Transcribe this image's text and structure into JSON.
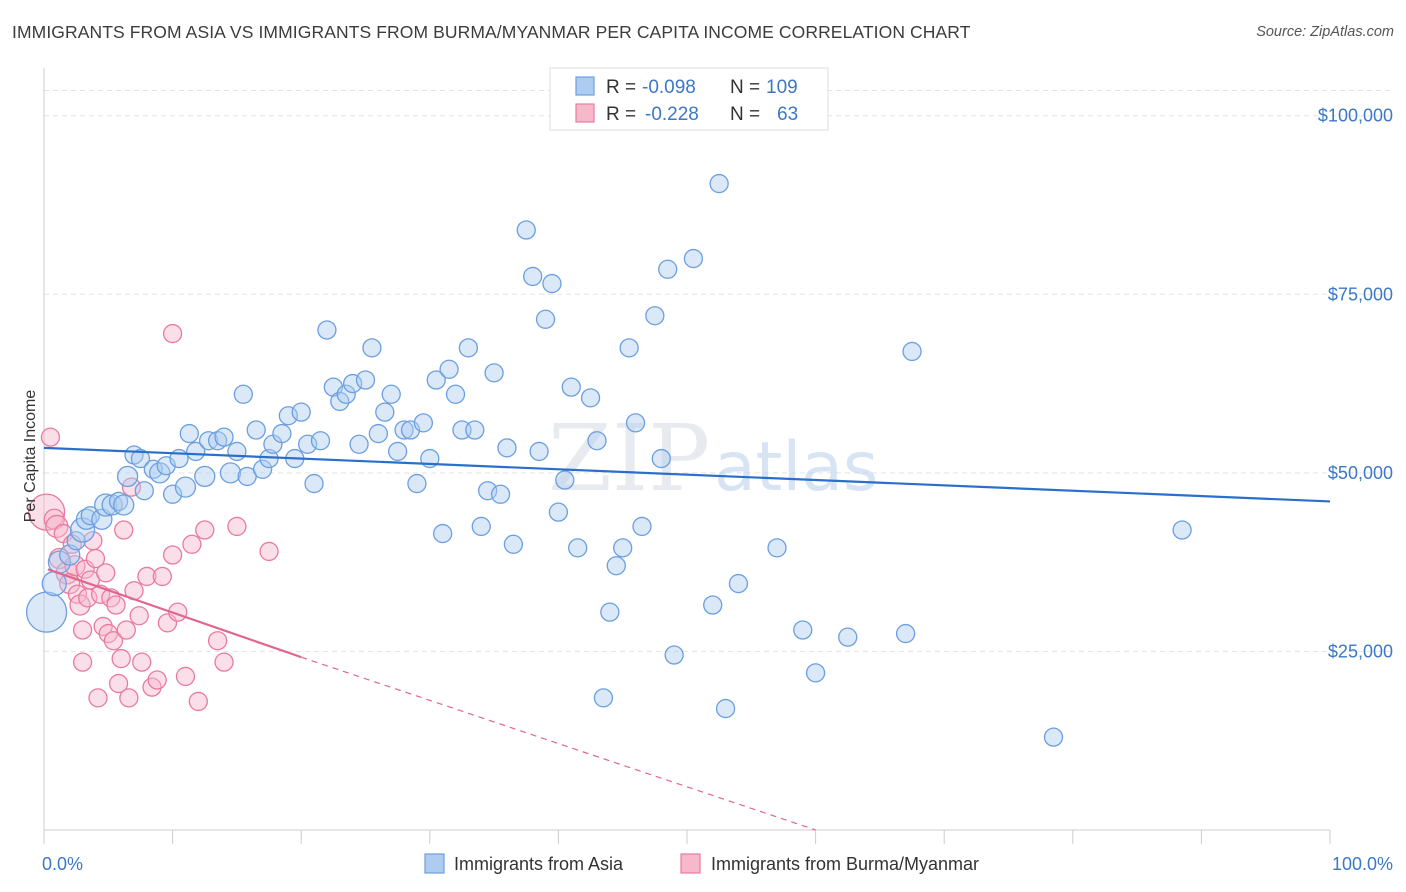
{
  "title": "IMMIGRANTS FROM ASIA VS IMMIGRANTS FROM BURMA/MYANMAR PER CAPITA INCOME CORRELATION CHART",
  "source": "Source: ZipAtlas.com",
  "watermark": {
    "zip": "ZIP",
    "atlas": "atlas"
  },
  "chart_data": {
    "type": "scatter",
    "xlabel": "",
    "ylabel": "Per Capita Income",
    "xlim": [
      0,
      100
    ],
    "ylim": [
      0,
      105000
    ],
    "x_tick_labels": {
      "left": "0.0%",
      "right": "100.0%"
    },
    "y_ticks": [
      {
        "value": 25000,
        "label": "$25,000"
      },
      {
        "value": 50000,
        "label": "$50,000"
      },
      {
        "value": 75000,
        "label": "$75,000"
      },
      {
        "value": 100000,
        "label": "$100,000"
      }
    ],
    "grid": true,
    "legend_stats": [
      {
        "r_label": "R =",
        "r_value": "-0.098",
        "n_label": "N =",
        "n_value": "109"
      },
      {
        "r_label": "R =",
        "r_value": "-0.228",
        "n_label": "N =",
        "n_value": "63"
      }
    ],
    "series": [
      {
        "name": "Immigrants from Asia",
        "color": "#6b9fe0",
        "fill": "#aecbf0",
        "trend": {
          "x": [
            0,
            100
          ],
          "y": [
            53500,
            46000
          ],
          "color": "#2a6fcc"
        },
        "points": [
          [
            0.2,
            30500,
            20
          ],
          [
            0.8,
            34500,
            12
          ],
          [
            1.2,
            37500,
            11
          ],
          [
            2.0,
            38500,
            10
          ],
          [
            2.5,
            40500,
            9
          ],
          [
            3.0,
            42000,
            12
          ],
          [
            3.3,
            43500,
            10
          ],
          [
            3.6,
            44000,
            9
          ],
          [
            4.5,
            43500,
            10
          ],
          [
            4.8,
            45500,
            11
          ],
          [
            5.3,
            45500,
            10
          ],
          [
            5.8,
            46000,
            9
          ],
          [
            6.2,
            45500,
            10
          ],
          [
            6.5,
            49500,
            10
          ],
          [
            7.0,
            52500,
            9
          ],
          [
            7.5,
            52000,
            9
          ],
          [
            7.8,
            47500,
            9
          ],
          [
            8.5,
            50500,
            9
          ],
          [
            9.0,
            50000,
            10
          ],
          [
            9.5,
            51000,
            9
          ],
          [
            10.0,
            47000,
            9
          ],
          [
            10.5,
            52000,
            9
          ],
          [
            11.0,
            48000,
            10
          ],
          [
            11.3,
            55500,
            9
          ],
          [
            11.8,
            53000,
            9
          ],
          [
            12.5,
            49500,
            10
          ],
          [
            12.8,
            54500,
            9
          ],
          [
            13.5,
            54500,
            9
          ],
          [
            14.0,
            55000,
            9
          ],
          [
            14.5,
            50000,
            10
          ],
          [
            15.0,
            53000,
            9
          ],
          [
            15.5,
            61000,
            9
          ],
          [
            15.8,
            49500,
            9
          ],
          [
            16.5,
            56000,
            9
          ],
          [
            17.0,
            50500,
            9
          ],
          [
            17.5,
            52000,
            9
          ],
          [
            17.8,
            54000,
            9
          ],
          [
            18.5,
            55500,
            9
          ],
          [
            19.0,
            58000,
            9
          ],
          [
            19.5,
            52000,
            9
          ],
          [
            20.0,
            58500,
            9
          ],
          [
            20.5,
            54000,
            9
          ],
          [
            21.0,
            48500,
            9
          ],
          [
            21.5,
            54500,
            9
          ],
          [
            22.0,
            70000,
            9
          ],
          [
            22.5,
            62000,
            9
          ],
          [
            23.0,
            60000,
            9
          ],
          [
            23.5,
            61000,
            9
          ],
          [
            24.0,
            62500,
            9
          ],
          [
            24.5,
            54000,
            9
          ],
          [
            25.0,
            63000,
            9
          ],
          [
            25.5,
            67500,
            9
          ],
          [
            26.0,
            55500,
            9
          ],
          [
            26.5,
            58500,
            9
          ],
          [
            27.0,
            61000,
            9
          ],
          [
            27.5,
            53000,
            9
          ],
          [
            28.0,
            56000,
            9
          ],
          [
            28.5,
            56000,
            9
          ],
          [
            29.0,
            48500,
            9
          ],
          [
            29.5,
            57000,
            9
          ],
          [
            30.0,
            52000,
            9
          ],
          [
            30.5,
            63000,
            9
          ],
          [
            31.0,
            41500,
            9
          ],
          [
            31.5,
            64500,
            9
          ],
          [
            32.0,
            61000,
            9
          ],
          [
            32.5,
            56000,
            9
          ],
          [
            33.0,
            67500,
            9
          ],
          [
            33.5,
            56000,
            9
          ],
          [
            34.0,
            42500,
            9
          ],
          [
            34.5,
            47500,
            9
          ],
          [
            35.0,
            64000,
            9
          ],
          [
            35.5,
            47000,
            9
          ],
          [
            36.0,
            53500,
            9
          ],
          [
            36.5,
            40000,
            9
          ],
          [
            37.5,
            84000,
            9
          ],
          [
            38.0,
            77500,
            9
          ],
          [
            38.5,
            53000,
            9
          ],
          [
            39.0,
            71500,
            9
          ],
          [
            39.5,
            76500,
            9
          ],
          [
            40.0,
            44500,
            9
          ],
          [
            40.5,
            49000,
            9
          ],
          [
            41.0,
            62000,
            9
          ],
          [
            41.5,
            39500,
            9
          ],
          [
            42.5,
            60500,
            9
          ],
          [
            43.0,
            54500,
            9
          ],
          [
            43.5,
            18500,
            9
          ],
          [
            44.0,
            30500,
            9
          ],
          [
            44.5,
            37000,
            9
          ],
          [
            45.0,
            39500,
            9
          ],
          [
            45.5,
            67500,
            9
          ],
          [
            46.0,
            57000,
            9
          ],
          [
            46.5,
            42500,
            9
          ],
          [
            47.5,
            72000,
            9
          ],
          [
            48.0,
            52000,
            9
          ],
          [
            48.5,
            78500,
            9
          ],
          [
            49.0,
            24500,
            9
          ],
          [
            50.5,
            80000,
            9
          ],
          [
            52.0,
            31500,
            9
          ],
          [
            52.5,
            90500,
            9
          ],
          [
            53.0,
            17000,
            9
          ],
          [
            54.0,
            34500,
            9
          ],
          [
            57.0,
            39500,
            9
          ],
          [
            59.0,
            28000,
            9
          ],
          [
            60.0,
            22000,
            9
          ],
          [
            62.5,
            27000,
            9
          ],
          [
            67.0,
            27500,
            9
          ],
          [
            67.5,
            67000,
            9
          ],
          [
            78.5,
            13000,
            9
          ],
          [
            88.5,
            42000,
            9
          ]
        ]
      },
      {
        "name": "Immigrants from Burma/Myanmar",
        "color": "#e97a9e",
        "fill": "#f6b9cc",
        "trend": {
          "x": [
            0.3,
            20
          ],
          "y": [
            36500,
            24200
          ],
          "dashed_to": {
            "x": 60,
            "y": 0
          },
          "color": "#e06690"
        },
        "points": [
          [
            0.2,
            44500,
            18
          ],
          [
            0.5,
            55000,
            9
          ],
          [
            0.8,
            43500,
            10
          ],
          [
            1.0,
            42500,
            11
          ],
          [
            1.2,
            38000,
            10
          ],
          [
            1.5,
            41500,
            9
          ],
          [
            1.8,
            36000,
            11
          ],
          [
            2.0,
            34500,
            10
          ],
          [
            2.2,
            40000,
            9
          ],
          [
            2.4,
            37000,
            10
          ],
          [
            2.6,
            33000,
            9
          ],
          [
            2.8,
            31500,
            10
          ],
          [
            3.0,
            28000,
            9
          ],
          [
            3.0,
            23500,
            9
          ],
          [
            3.2,
            36500,
            9
          ],
          [
            3.4,
            32500,
            9
          ],
          [
            3.6,
            35000,
            9
          ],
          [
            3.8,
            40500,
            9
          ],
          [
            4.0,
            38000,
            9
          ],
          [
            4.2,
            18500,
            9
          ],
          [
            4.4,
            33000,
            9
          ],
          [
            4.6,
            28500,
            9
          ],
          [
            4.8,
            36000,
            9
          ],
          [
            5.0,
            27500,
            9
          ],
          [
            5.2,
            32500,
            9
          ],
          [
            5.4,
            26500,
            9
          ],
          [
            5.6,
            31500,
            9
          ],
          [
            5.8,
            20500,
            9
          ],
          [
            6.0,
            24000,
            9
          ],
          [
            6.2,
            42000,
            9
          ],
          [
            6.4,
            28000,
            9
          ],
          [
            6.6,
            18500,
            9
          ],
          [
            6.8,
            48000,
            9
          ],
          [
            7.0,
            33500,
            9
          ],
          [
            7.4,
            30000,
            9
          ],
          [
            7.6,
            23500,
            9
          ],
          [
            8.0,
            35500,
            9
          ],
          [
            8.4,
            20000,
            9
          ],
          [
            8.8,
            21000,
            9
          ],
          [
            9.2,
            35500,
            9
          ],
          [
            9.6,
            29000,
            9
          ],
          [
            10.0,
            38500,
            9
          ],
          [
            10.4,
            30500,
            9
          ],
          [
            11.0,
            21500,
            9
          ],
          [
            11.5,
            40000,
            9
          ],
          [
            12.0,
            18000,
            9
          ],
          [
            12.5,
            42000,
            9
          ],
          [
            13.5,
            26500,
            9
          ],
          [
            14.0,
            23500,
            9
          ],
          [
            15.0,
            42500,
            9
          ],
          [
            17.5,
            39000,
            9
          ],
          [
            10.0,
            69500,
            9
          ]
        ]
      }
    ]
  },
  "bottom_legend": [
    "Immigrants from Asia",
    "Immigrants from Burma/Myanmar"
  ]
}
